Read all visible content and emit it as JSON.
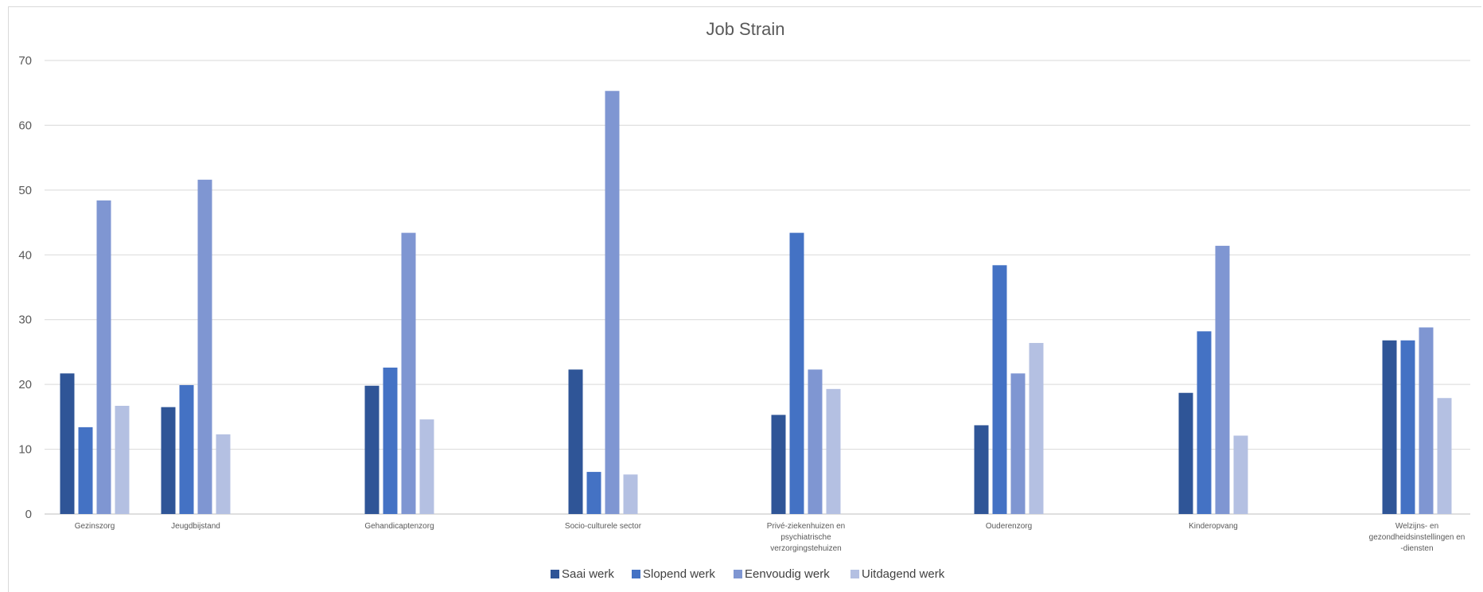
{
  "chart_data": {
    "type": "bar",
    "title": "Job Strain",
    "xlabel": "",
    "ylabel": "",
    "ylim": [
      0,
      70
    ],
    "yticks": [
      0,
      10,
      20,
      30,
      40,
      50,
      60,
      70
    ],
    "grid": true,
    "legend_position": "bottom",
    "categories": [
      [
        "Gezinszorg"
      ],
      [
        "Jeugdbijstand"
      ],
      [
        "Gehandicaptenzorg"
      ],
      [
        "Socio-culturele sector"
      ],
      [
        "Privé-ziekenhuizen en",
        "psychiatrische",
        "verzorgingstehuizen"
      ],
      [
        "Ouderenzorg"
      ],
      [
        "Kinderopvang"
      ],
      [
        "Welzijns- en",
        "gezondheidsinstellingen en",
        "-diensten"
      ]
    ],
    "series": [
      {
        "name": "Saai werk",
        "color": "#2f5597",
        "values": [
          21.7,
          16.5,
          19.8,
          22.3,
          15.3,
          13.7,
          18.7,
          26.8
        ]
      },
      {
        "name": "Slopend werk",
        "color": "#4472c4",
        "values": [
          13.4,
          19.9,
          22.6,
          6.5,
          43.4,
          38.4,
          28.2,
          26.8
        ]
      },
      {
        "name": "Eenvoudig werk",
        "color": "#7f96d2",
        "values": [
          48.4,
          51.6,
          43.4,
          65.3,
          22.3,
          21.7,
          41.4,
          28.8
        ]
      },
      {
        "name": "Uitdagend werk",
        "color": "#b4c0e2",
        "values": [
          16.7,
          12.3,
          14.6,
          6.1,
          19.3,
          26.4,
          12.1,
          17.9
        ]
      }
    ]
  }
}
